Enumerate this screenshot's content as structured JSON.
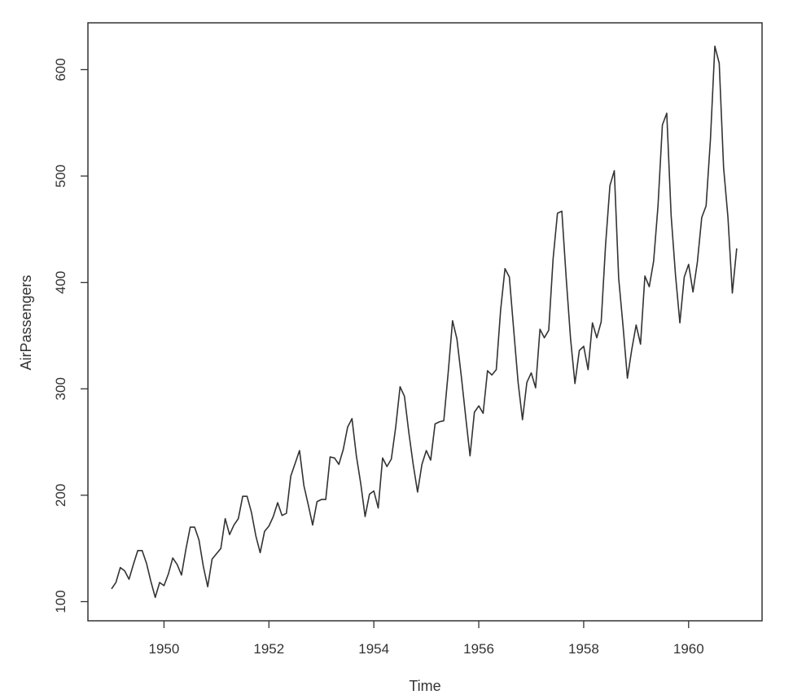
{
  "chart_data": {
    "type": "line",
    "title": "",
    "xlabel": "Time",
    "ylabel": "AirPassengers",
    "xlim": [
      1948.55,
      1961.4
    ],
    "ylim": [
      82,
      644
    ],
    "x_start": 1949,
    "x_step": 0.0833333333,
    "x_ticks": [
      1950,
      1952,
      1954,
      1956,
      1958,
      1960
    ],
    "x_tick_labels": [
      "1950",
      "1952",
      "1954",
      "1956",
      "1958",
      "1960"
    ],
    "y_ticks": [
      100,
      200,
      300,
      400,
      500,
      600
    ],
    "y_tick_labels": [
      "100",
      "200",
      "300",
      "400",
      "500",
      "600"
    ],
    "grid": false,
    "line_color": "#333333",
    "series": [
      {
        "values": [
          112,
          118,
          132,
          129,
          121,
          135,
          148,
          148,
          136,
          119,
          104,
          118,
          115,
          126,
          141,
          135,
          125,
          149,
          170,
          170,
          158,
          133,
          114,
          140,
          145,
          150,
          178,
          163,
          172,
          178,
          199,
          199,
          184,
          162,
          146,
          166,
          171,
          180,
          193,
          181,
          183,
          218,
          230,
          242,
          209,
          191,
          172,
          194,
          196,
          196,
          236,
          235,
          229,
          243,
          264,
          272,
          237,
          211,
          180,
          201,
          204,
          188,
          235,
          227,
          234,
          264,
          302,
          293,
          259,
          229,
          203,
          229,
          242,
          233,
          267,
          269,
          270,
          315,
          364,
          347,
          312,
          274,
          237,
          278,
          284,
          277,
          317,
          313,
          318,
          374,
          413,
          405,
          355,
          306,
          271,
          306,
          315,
          301,
          356,
          348,
          355,
          422,
          465,
          467,
          404,
          347,
          305,
          336,
          340,
          318,
          362,
          348,
          363,
          435,
          491,
          505,
          404,
          359,
          310,
          337,
          360,
          342,
          406,
          396,
          420,
          472,
          548,
          559,
          463,
          407,
          362,
          405,
          417,
          391,
          419,
          461,
          472,
          535,
          622,
          606,
          508,
          461,
          390,
          432
        ]
      }
    ]
  }
}
